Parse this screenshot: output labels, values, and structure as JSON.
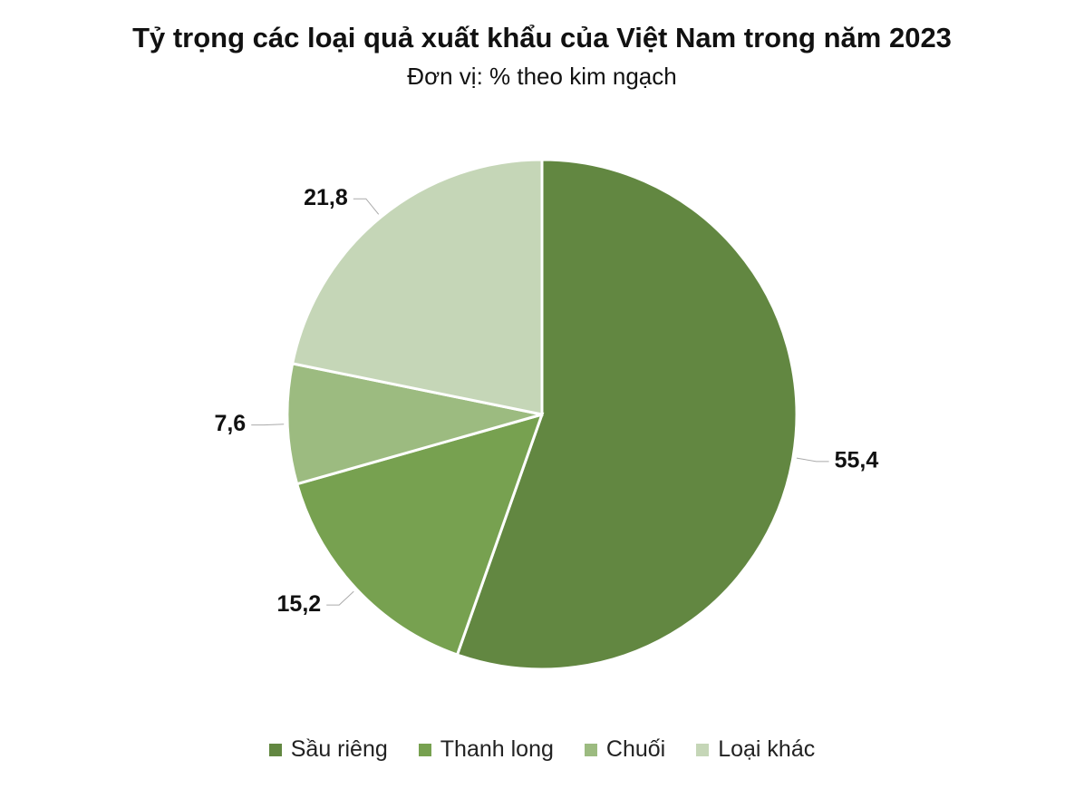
{
  "chart_data": {
    "type": "pie",
    "title": "Tỷ trọng các loại quả xuất khẩu của Việt Nam trong năm 2023",
    "subtitle": "Đơn vị: % theo kim ngạch",
    "categories": [
      "Sầu riêng",
      "Thanh long",
      "Chuối",
      "Loại khác"
    ],
    "values": [
      55.4,
      15.2,
      7.6,
      21.8
    ],
    "value_labels": [
      "55,4",
      "15,2",
      "7,6",
      "21,8"
    ],
    "colors": [
      "#628741",
      "#77a150",
      "#9cbb80",
      "#c5d6b7"
    ],
    "legend": "bottom"
  }
}
